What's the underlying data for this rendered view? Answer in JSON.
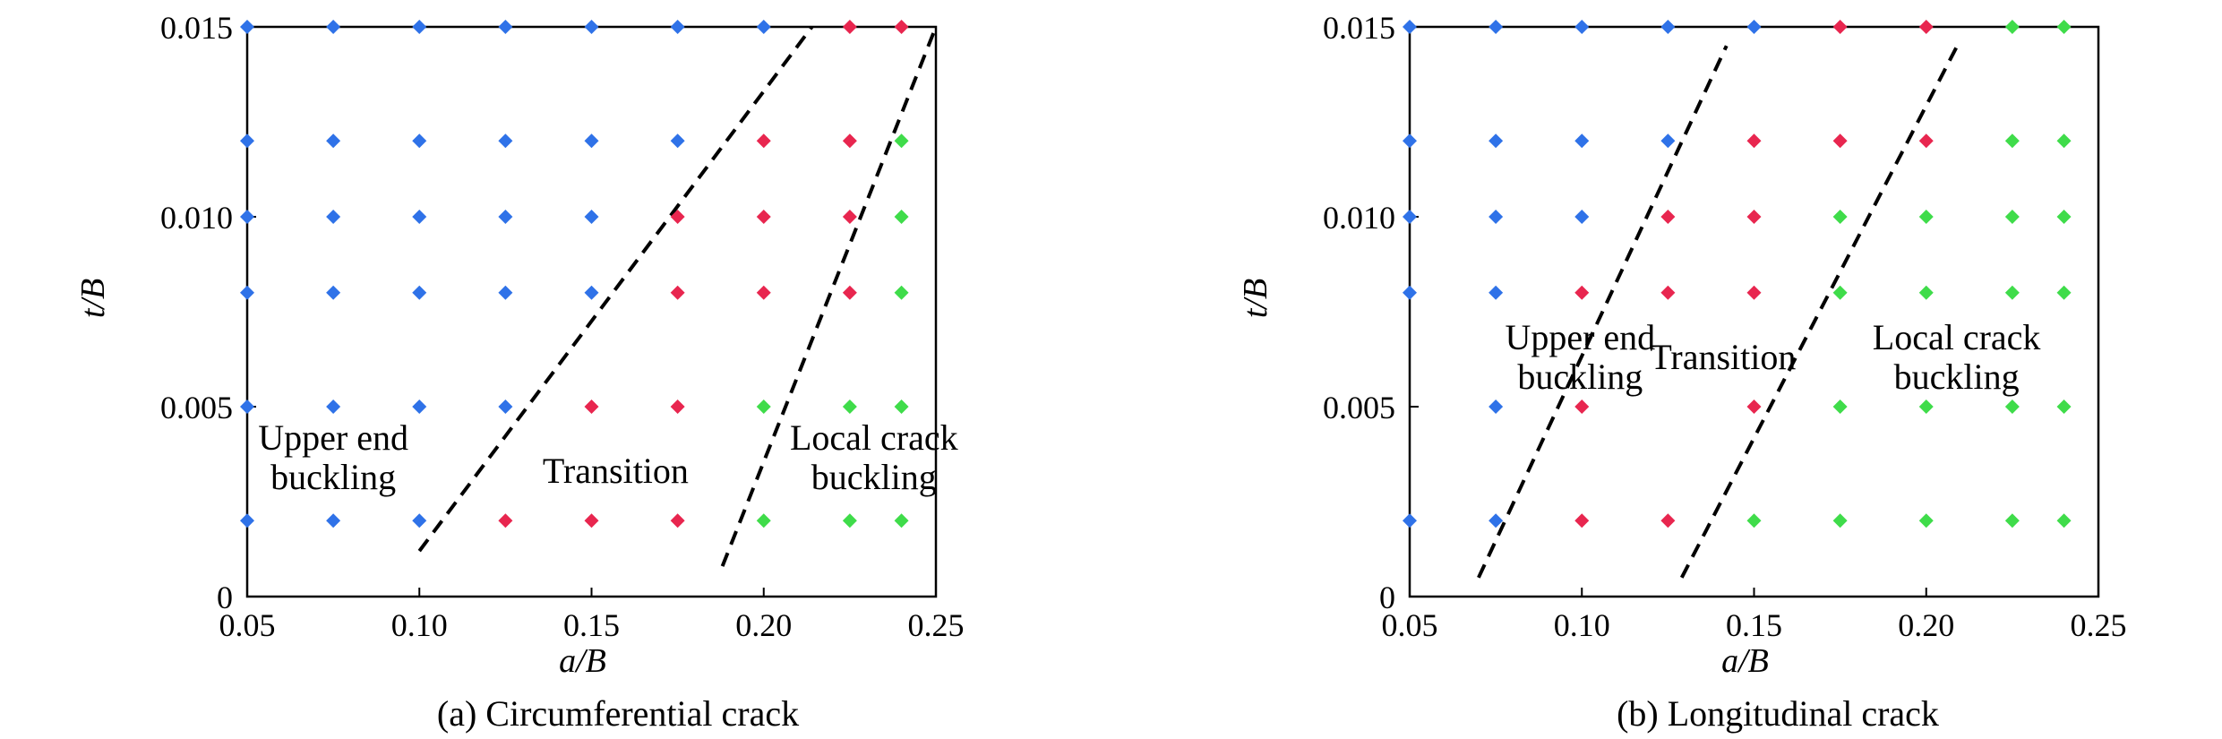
{
  "colors": {
    "upper_end_buckling": "#2f72e8",
    "transition": "#e8264f",
    "local_crack_buckling": "#3fdc4a",
    "frame": "#000000",
    "boundary": "#000000"
  },
  "chart_data": [
    {
      "type": "scatter",
      "caption": "(a) Circumferential crack",
      "xlabel": "a/B",
      "ylabel": "t/B",
      "xlim": [
        0.05,
        0.25
      ],
      "ylim": [
        0,
        0.015
      ],
      "xticks": [
        "0.05",
        "0.10",
        "0.15",
        "0.20",
        "0.25"
      ],
      "yticks": [
        "0",
        "0.005",
        "0.010",
        "0.015"
      ],
      "grid": false,
      "series": [
        {
          "label": "Upper end buckling",
          "points": [
            [
              0.05,
              0.015
            ],
            [
              0.075,
              0.015
            ],
            [
              0.1,
              0.015
            ],
            [
              0.125,
              0.015
            ],
            [
              0.15,
              0.015
            ],
            [
              0.175,
              0.015
            ],
            [
              0.2,
              0.015
            ],
            [
              0.05,
              0.012
            ],
            [
              0.075,
              0.012
            ],
            [
              0.1,
              0.012
            ],
            [
              0.125,
              0.012
            ],
            [
              0.15,
              0.012
            ],
            [
              0.175,
              0.012
            ],
            [
              0.05,
              0.01
            ],
            [
              0.075,
              0.01
            ],
            [
              0.1,
              0.01
            ],
            [
              0.125,
              0.01
            ],
            [
              0.15,
              0.01
            ],
            [
              0.05,
              0.008
            ],
            [
              0.075,
              0.008
            ],
            [
              0.1,
              0.008
            ],
            [
              0.125,
              0.008
            ],
            [
              0.15,
              0.008
            ],
            [
              0.05,
              0.005
            ],
            [
              0.075,
              0.005
            ],
            [
              0.1,
              0.005
            ],
            [
              0.125,
              0.005
            ],
            [
              0.05,
              0.002
            ],
            [
              0.075,
              0.002
            ],
            [
              0.1,
              0.002
            ]
          ]
        },
        {
          "label": "Transition",
          "points": [
            [
              0.225,
              0.015
            ],
            [
              0.24,
              0.015
            ],
            [
              0.2,
              0.012
            ],
            [
              0.225,
              0.012
            ],
            [
              0.175,
              0.01
            ],
            [
              0.2,
              0.01
            ],
            [
              0.225,
              0.01
            ],
            [
              0.175,
              0.008
            ],
            [
              0.2,
              0.008
            ],
            [
              0.225,
              0.008
            ],
            [
              0.15,
              0.005
            ],
            [
              0.175,
              0.005
            ],
            [
              0.125,
              0.002
            ],
            [
              0.15,
              0.002
            ],
            [
              0.175,
              0.002
            ]
          ]
        },
        {
          "label": "Local crack buckling",
          "points": [
            [
              0.24,
              0.012
            ],
            [
              0.24,
              0.01
            ],
            [
              0.24,
              0.008
            ],
            [
              0.2,
              0.005
            ],
            [
              0.225,
              0.005
            ],
            [
              0.24,
              0.005
            ],
            [
              0.2,
              0.002
            ],
            [
              0.225,
              0.002
            ],
            [
              0.24,
              0.002
            ]
          ]
        }
      ],
      "boundaries": [
        [
          [
            0.1,
            0.0012
          ],
          [
            0.214,
            0.015
          ]
        ],
        [
          [
            0.188,
            0.0008
          ],
          [
            0.25,
            0.015
          ]
        ]
      ],
      "region_labels": [
        {
          "lines": [
            "Upper end",
            "buckling"
          ],
          "at": [
            0.075,
            0.00365
          ]
        },
        {
          "lines": [
            "Transition"
          ],
          "at": [
            0.157,
            0.0033
          ]
        },
        {
          "lines": [
            "Local crack",
            "buckling"
          ],
          "at": [
            0.232,
            0.00365
          ]
        }
      ]
    },
    {
      "type": "scatter",
      "caption": "(b) Longitudinal crack",
      "xlabel": "a/B",
      "ylabel": "t/B",
      "xlim": [
        0.05,
        0.25
      ],
      "ylim": [
        0,
        0.015
      ],
      "xticks": [
        "0.05",
        "0.10",
        "0.15",
        "0.20",
        "0.25"
      ],
      "yticks": [
        "0",
        "0.005",
        "0.010",
        "0.015"
      ],
      "grid": false,
      "series": [
        {
          "label": "Upper end buckling",
          "points": [
            [
              0.05,
              0.015
            ],
            [
              0.075,
              0.015
            ],
            [
              0.1,
              0.015
            ],
            [
              0.125,
              0.015
            ],
            [
              0.15,
              0.015
            ],
            [
              0.05,
              0.012
            ],
            [
              0.075,
              0.012
            ],
            [
              0.1,
              0.012
            ],
            [
              0.125,
              0.012
            ],
            [
              0.05,
              0.01
            ],
            [
              0.075,
              0.01
            ],
            [
              0.1,
              0.01
            ],
            [
              0.05,
              0.008
            ],
            [
              0.075,
              0.008
            ],
            [
              0.075,
              0.005
            ],
            [
              0.05,
              0.002
            ],
            [
              0.075,
              0.002
            ]
          ]
        },
        {
          "label": "Transition",
          "points": [
            [
              0.175,
              0.015
            ],
            [
              0.2,
              0.015
            ],
            [
              0.15,
              0.012
            ],
            [
              0.175,
              0.012
            ],
            [
              0.2,
              0.012
            ],
            [
              0.125,
              0.01
            ],
            [
              0.15,
              0.01
            ],
            [
              0.1,
              0.008
            ],
            [
              0.125,
              0.008
            ],
            [
              0.15,
              0.008
            ],
            [
              0.1,
              0.005
            ],
            [
              0.15,
              0.005
            ],
            [
              0.1,
              0.002
            ],
            [
              0.125,
              0.002
            ]
          ]
        },
        {
          "label": "Local crack buckling",
          "points": [
            [
              0.225,
              0.015
            ],
            [
              0.24,
              0.015
            ],
            [
              0.225,
              0.012
            ],
            [
              0.24,
              0.012
            ],
            [
              0.175,
              0.01
            ],
            [
              0.2,
              0.01
            ],
            [
              0.225,
              0.01
            ],
            [
              0.24,
              0.01
            ],
            [
              0.175,
              0.008
            ],
            [
              0.2,
              0.008
            ],
            [
              0.225,
              0.008
            ],
            [
              0.24,
              0.008
            ],
            [
              0.175,
              0.005
            ],
            [
              0.2,
              0.005
            ],
            [
              0.225,
              0.005
            ],
            [
              0.24,
              0.005
            ],
            [
              0.15,
              0.002
            ],
            [
              0.175,
              0.002
            ],
            [
              0.2,
              0.002
            ],
            [
              0.225,
              0.002
            ],
            [
              0.24,
              0.002
            ]
          ]
        }
      ],
      "boundaries": [
        [
          [
            0.07,
            0.0005
          ],
          [
            0.142,
            0.0145
          ]
        ],
        [
          [
            0.129,
            0.0005
          ],
          [
            0.209,
            0.0145
          ]
        ]
      ],
      "region_labels": [
        {
          "lines": [
            "Upper end",
            "buckling"
          ],
          "at": [
            0.0995,
            0.0063
          ]
        },
        {
          "lines": [
            "Transition"
          ],
          "at": [
            0.141,
            0.0063
          ]
        },
        {
          "lines": [
            "Local crack",
            "buckling"
          ],
          "at": [
            0.2088,
            0.0063
          ]
        }
      ]
    }
  ]
}
